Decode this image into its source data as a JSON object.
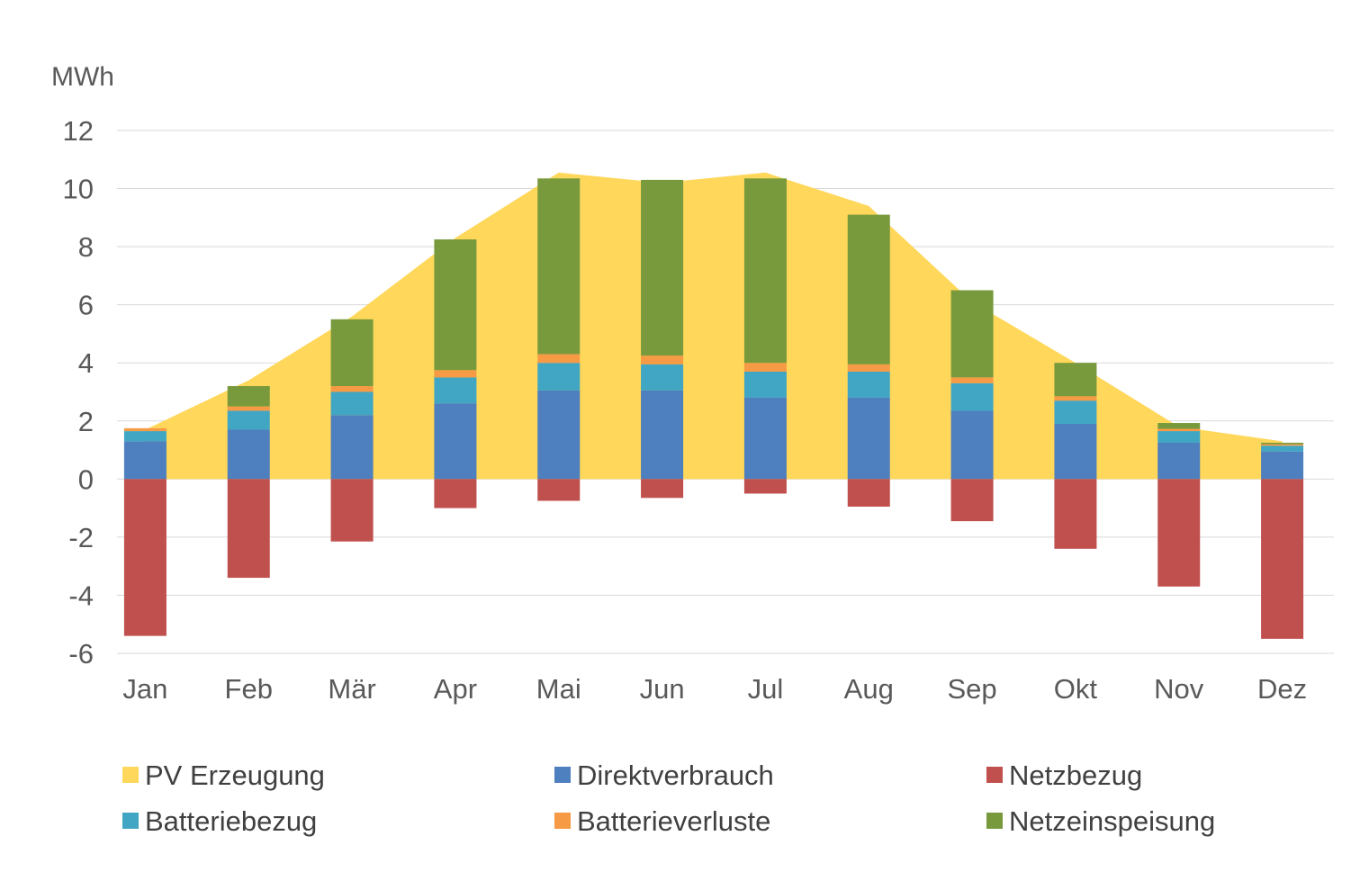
{
  "chart_data": {
    "type": "bar",
    "stacked": true,
    "unit_label": "MWh",
    "title": "",
    "xlabel": "",
    "ylabel": "",
    "ylim": [
      -6,
      12
    ],
    "yticks": [
      12,
      10,
      8,
      6,
      4,
      2,
      0,
      -2,
      -4,
      -6
    ],
    "grid": true,
    "legend_position": "bottom",
    "categories": [
      "Jan",
      "Feb",
      "Mär",
      "Apr",
      "Mai",
      "Jun",
      "Jul",
      "Aug",
      "Sep",
      "Okt",
      "Nov",
      "Dez"
    ],
    "area_series": {
      "name": "PV Erzeugung",
      "color": "#FFD75A",
      "values": [
        1.7,
        3.4,
        5.6,
        8.3,
        10.55,
        10.2,
        10.55,
        9.4,
        6.1,
        4.0,
        1.8,
        1.3
      ]
    },
    "series": [
      {
        "name": "Direktverbrauch",
        "color": "#4E7FBF",
        "values": [
          1.3,
          1.7,
          2.2,
          2.6,
          3.05,
          3.05,
          2.8,
          2.8,
          2.35,
          1.9,
          1.25,
          0.95
        ]
      },
      {
        "name": "Batteriebezug",
        "color": "#41A6C4",
        "values": [
          0.35,
          0.65,
          0.8,
          0.9,
          0.95,
          0.9,
          0.9,
          0.9,
          0.95,
          0.8,
          0.4,
          0.2
        ]
      },
      {
        "name": "Batterieverluste",
        "color": "#F79A45",
        "values": [
          0.1,
          0.15,
          0.2,
          0.25,
          0.3,
          0.3,
          0.3,
          0.25,
          0.2,
          0.15,
          0.08,
          0.05
        ]
      },
      {
        "name": "Netzeinspeisung",
        "color": "#789A3C",
        "values": [
          0.0,
          0.7,
          2.3,
          4.5,
          6.05,
          6.05,
          6.35,
          5.15,
          3.0,
          1.15,
          0.2,
          0.05
        ]
      },
      {
        "name": "Netzbezug",
        "color": "#C0504D",
        "values": [
          -5.4,
          -3.4,
          -2.15,
          -1.0,
          -0.75,
          -0.65,
          -0.5,
          -0.95,
          -1.45,
          -2.4,
          -3.7,
          -5.5
        ]
      }
    ],
    "legend": [
      {
        "name": "PV Erzeugung",
        "color": "#FFD75A"
      },
      {
        "name": "Direktverbrauch",
        "color": "#4E7FBF"
      },
      {
        "name": "Netzbezug",
        "color": "#C0504D"
      },
      {
        "name": "Batteriebezug",
        "color": "#41A6C4"
      },
      {
        "name": "Batterieverluste",
        "color": "#F79A45"
      },
      {
        "name": "Netzeinspeisung",
        "color": "#789A3C"
      }
    ]
  }
}
